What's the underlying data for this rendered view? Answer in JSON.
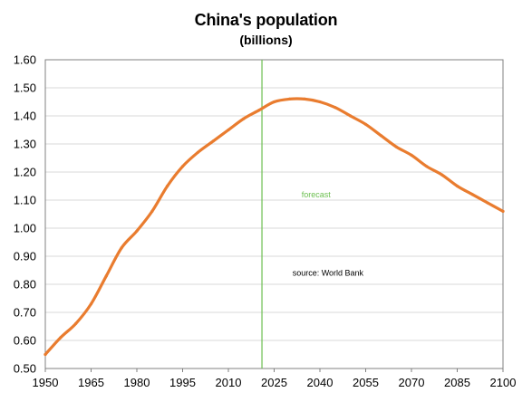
{
  "chart_data": {
    "type": "line",
    "title": "China's population",
    "subtitle": "(billions)",
    "xlabel": "",
    "ylabel": "",
    "xlim": [
      1950,
      2100
    ],
    "ylim": [
      0.5,
      1.6
    ],
    "x_ticks": [
      "1950",
      "1965",
      "1980",
      "1995",
      "2010",
      "2025",
      "2040",
      "2055",
      "2070",
      "2085",
      "2100"
    ],
    "y_ticks": [
      "0.50",
      "0.60",
      "0.70",
      "0.80",
      "0.90",
      "1.00",
      "1.10",
      "1.20",
      "1.30",
      "1.40",
      "1.50",
      "1.60"
    ],
    "grid": "horizontal",
    "forecast_year": 2021,
    "forecast_label": "forecast",
    "source_label": "source:  World Bank",
    "line_color": "#E97C2F",
    "forecast_line_color": "#6BBF4F",
    "series": [
      {
        "x": [
          1950,
          1955,
          1960,
          1965,
          1970,
          1975,
          1980,
          1985,
          1990,
          1995,
          2000,
          2005,
          2010,
          2015,
          2020,
          2025,
          2030,
          2035,
          2040,
          2045,
          2050,
          2055,
          2060,
          2065,
          2070,
          2075,
          2080,
          2085,
          2090,
          2095,
          2100
        ],
        "values": [
          0.55,
          0.61,
          0.66,
          0.73,
          0.83,
          0.93,
          0.99,
          1.06,
          1.15,
          1.22,
          1.27,
          1.31,
          1.35,
          1.39,
          1.42,
          1.45,
          1.46,
          1.46,
          1.45,
          1.43,
          1.4,
          1.37,
          1.33,
          1.29,
          1.26,
          1.22,
          1.19,
          1.15,
          1.12,
          1.09,
          1.06
        ]
      }
    ]
  }
}
